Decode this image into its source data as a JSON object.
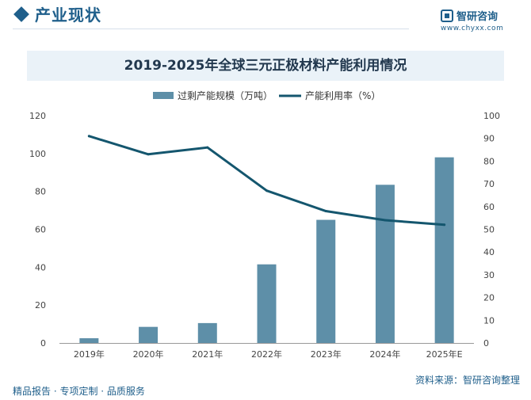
{
  "header": {
    "title": "产业现状",
    "logo_text": "智研咨询",
    "logo_url": "www.chyxx.com"
  },
  "footer": {
    "left": "精品报告 · 专项定制 · 品质服务",
    "right": "资料来源：智研咨询整理"
  },
  "colors": {
    "bar": "#5e8fa8",
    "line": "#14566e",
    "brand": "#1f5f8b"
  },
  "chart_data": {
    "type": "bar",
    "title": "2019-2025年全球三元正极材料产能利用情况",
    "categories": [
      "2019年",
      "2020年",
      "2021年",
      "2022年",
      "2023年",
      "2024年",
      "2025年E"
    ],
    "series": [
      {
        "name": "过剩产能规模（万吨）",
        "type": "bar",
        "axis": "left",
        "values": [
          2.5,
          8.5,
          10.5,
          41.5,
          65,
          83.5,
          98
        ]
      },
      {
        "name": "产能利用率（%）",
        "type": "line",
        "axis": "right",
        "values": [
          91,
          83,
          86,
          67,
          58,
          54,
          52
        ]
      }
    ],
    "y_left": {
      "min": 0,
      "max": 120,
      "ticks": [
        "0",
        "20",
        "40",
        "60",
        "80",
        "100",
        "120"
      ]
    },
    "y_right": {
      "min": 0,
      "max": 100,
      "ticks": [
        "0",
        "10",
        "20",
        "30",
        "40",
        "50",
        "60",
        "70",
        "80",
        "90",
        "100"
      ]
    },
    "legend_position": "top-center",
    "grid": false
  }
}
